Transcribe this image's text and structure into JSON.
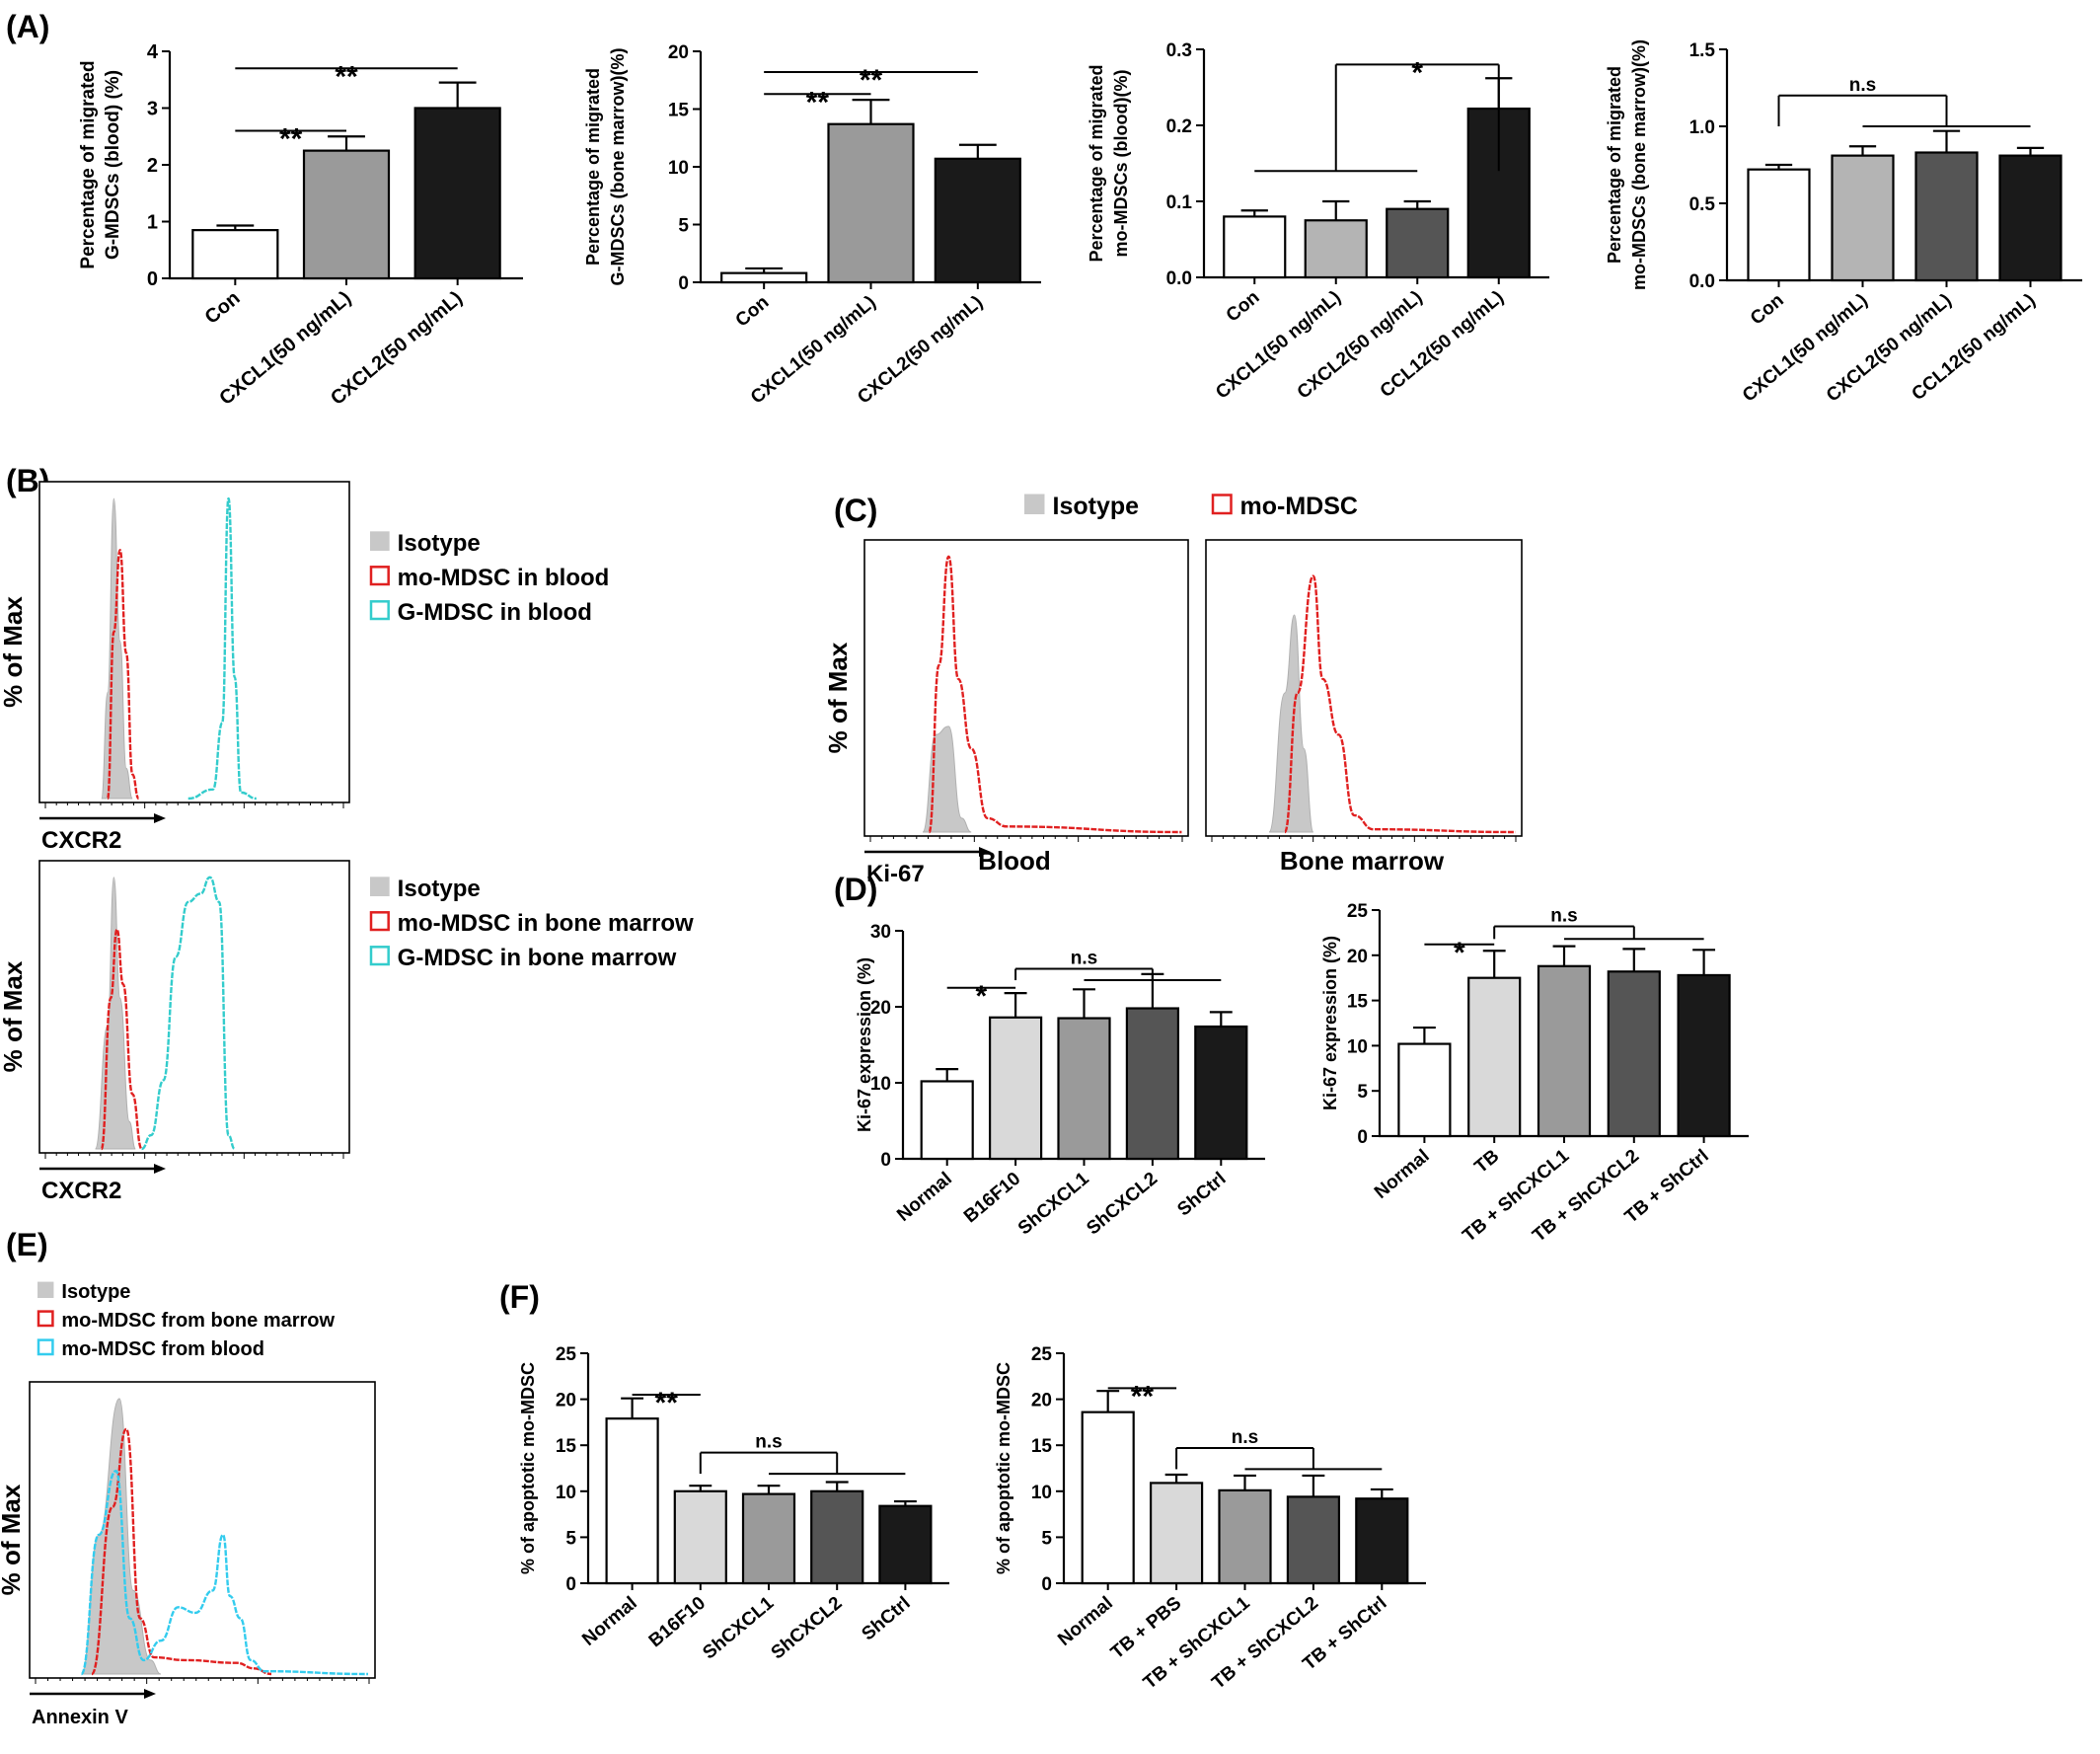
{
  "panels": {
    "A": "(A)",
    "B": "(B)",
    "C": "(C)",
    "D": "(D)",
    "E": "(E)",
    "F": "(F)"
  },
  "chart_data": [
    {
      "id": "A1",
      "type": "bar",
      "ylabel": "Percentage of migrated G-MDSCs (blood) (%)",
      "ylabel_lines": [
        "Percentage of migrated",
        "G-MDSCs (blood) (%)"
      ],
      "categories": [
        "Con",
        "CXCL1(50 ng/mL)",
        "CXCL2(50 ng/mL)"
      ],
      "values": [
        0.85,
        2.25,
        3.0
      ],
      "errors": [
        0.08,
        0.25,
        0.45
      ],
      "bar_colors": [
        "#ffffff",
        "#9a9a9a",
        "#1a1a1a"
      ],
      "ylim": [
        0,
        4
      ],
      "yticks": [
        "0",
        "1",
        "2",
        "3",
        "4"
      ],
      "brackets": [
        {
          "type": "line",
          "x1": 0,
          "x2": 1,
          "y": 2.6,
          "label": "**"
        },
        {
          "type": "line",
          "x1": 0,
          "x2": 2,
          "y": 3.7,
          "label": "**"
        }
      ]
    },
    {
      "id": "A2",
      "type": "bar",
      "ylabel": "Percentage of migrated G-MDSCs (bone marrow)(%)",
      "ylabel_lines": [
        "Percentage of migrated",
        "G-MDSCs (bone marrow)(%)"
      ],
      "categories": [
        "Con",
        "CXCL1(50 ng/mL)",
        "CXCL2(50 ng/mL)"
      ],
      "values": [
        0.8,
        13.7,
        10.7
      ],
      "errors": [
        0.4,
        2.1,
        1.2
      ],
      "bar_colors": [
        "#ffffff",
        "#9a9a9a",
        "#1a1a1a"
      ],
      "ylim": [
        0,
        20
      ],
      "yticks": [
        "0",
        "5",
        "10",
        "15",
        "20"
      ],
      "brackets": [
        {
          "type": "line",
          "x1": 0,
          "x2": 1,
          "y": 16.3,
          "label": "**"
        },
        {
          "type": "line",
          "x1": 0,
          "x2": 2,
          "y": 18.2,
          "label": "**"
        }
      ]
    },
    {
      "id": "A3",
      "type": "bar",
      "ylabel": "Percentage of migrated mo-MDSCs (blood)(%)",
      "ylabel_lines": [
        "Percentage of migrated",
        "mo-MDSCs (blood)(%)"
      ],
      "categories": [
        "Con",
        "CXCL1(50 ng/mL)",
        "CXCL2(50 ng/mL)",
        "CCL12(50 ng/mL)"
      ],
      "values": [
        0.08,
        0.075,
        0.09,
        0.222
      ],
      "errors": [
        0.008,
        0.025,
        0.01,
        0.04
      ],
      "bar_colors": [
        "#ffffff",
        "#b4b4b4",
        "#555555",
        "#1a1a1a"
      ],
      "ylim": [
        0,
        0.3
      ],
      "yticks": [
        "0.0",
        "0.1",
        "0.2",
        "0.3"
      ],
      "brackets": [
        {
          "type": "line",
          "x1": 0,
          "x2": 2,
          "y": 0.14,
          "label": ""
        },
        {
          "type": "stem",
          "x1": 1,
          "x2": 3,
          "y": 0.28,
          "stem_from": 0.14,
          "label": "*"
        }
      ]
    },
    {
      "id": "A4",
      "type": "bar",
      "ylabel": "Percentage of migrated mo-MDSCs (bone marrow)(%)",
      "ylabel_lines": [
        "Percentage of migrated",
        "mo-MDSCs (bone marrow)(%)"
      ],
      "categories": [
        "Con",
        "CXCL1(50 ng/mL)",
        "CXCL2(50 ng/mL)",
        "CCL12(50 ng/mL)"
      ],
      "values": [
        0.72,
        0.81,
        0.83,
        0.81
      ],
      "errors": [
        0.03,
        0.06,
        0.14,
        0.05
      ],
      "bar_colors": [
        "#ffffff",
        "#b4b4b4",
        "#555555",
        "#1a1a1a"
      ],
      "ylim": [
        0,
        1.5
      ],
      "yticks": [
        "0.0",
        "0.5",
        "1.0",
        "1.5"
      ],
      "brackets": [
        {
          "type": "line",
          "x1": 1,
          "x2": 3,
          "y": 1.0,
          "label": ""
        },
        {
          "type": "stem",
          "x1": 0,
          "x2": 2,
          "y": 1.2,
          "stem_from": 1.0,
          "label": "n.s"
        }
      ]
    },
    {
      "id": "D1",
      "type": "bar",
      "ylabel": "Ki-67 expression (%)",
      "ylabel_lines": [
        "Ki-67 expression (%)"
      ],
      "categories": [
        "Normal",
        "B16F10",
        "ShCXCL1",
        "ShCXCL2",
        "ShCtrl"
      ],
      "values": [
        10.2,
        18.6,
        18.5,
        19.8,
        17.4
      ],
      "errors": [
        1.6,
        3.2,
        3.8,
        4.5,
        1.9
      ],
      "bar_colors": [
        "#ffffff",
        "#d9d9d9",
        "#9a9a9a",
        "#555555",
        "#1a1a1a"
      ],
      "ylim": [
        0,
        30
      ],
      "yticks": [
        "0",
        "10",
        "20",
        "30"
      ],
      "brackets": [
        {
          "type": "line",
          "x1": 0,
          "x2": 1,
          "y": 22.5,
          "label": "*"
        },
        {
          "type": "line",
          "x1": 2,
          "x2": 4,
          "y": 23.5,
          "label": ""
        },
        {
          "type": "stem",
          "x1": 1,
          "x2": 3,
          "y": 25.0,
          "stem_from": 23.5,
          "label": "n.s"
        }
      ]
    },
    {
      "id": "D2",
      "type": "bar",
      "ylabel": "Ki-67 expression (%)",
      "ylabel_lines": [
        "Ki-67 expression (%)"
      ],
      "categories": [
        "Normal",
        "TB",
        "TB + ShCXCL1",
        "TB + ShCXCL2",
        "TB + ShCtrl"
      ],
      "values": [
        10.2,
        17.5,
        18.8,
        18.2,
        17.8
      ],
      "errors": [
        1.8,
        3.0,
        2.2,
        2.5,
        2.8
      ],
      "bar_colors": [
        "#ffffff",
        "#d9d9d9",
        "#9a9a9a",
        "#555555",
        "#1a1a1a"
      ],
      "ylim": [
        0,
        25
      ],
      "yticks": [
        "0",
        "5",
        "10",
        "15",
        "20",
        "25"
      ],
      "brackets": [
        {
          "type": "line",
          "x1": 0,
          "x2": 1,
          "y": 21.2,
          "label": "*"
        },
        {
          "type": "line",
          "x1": 2,
          "x2": 4,
          "y": 21.8,
          "label": ""
        },
        {
          "type": "stem",
          "x1": 1,
          "x2": 3,
          "y": 23.2,
          "stem_from": 21.8,
          "label": "n.s"
        }
      ]
    },
    {
      "id": "F1",
      "type": "bar",
      "ylabel": "% of apoptotic mo-MDSC",
      "ylabel_lines": [
        "% of apoptotic mo-MDSC"
      ],
      "categories": [
        "Normal",
        "B16F10",
        "ShCXCL1",
        "ShCXCL2",
        "ShCtrl"
      ],
      "values": [
        17.9,
        10.0,
        9.7,
        10.0,
        8.4
      ],
      "errors": [
        2.2,
        0.6,
        0.9,
        1.0,
        0.5
      ],
      "bar_colors": [
        "#ffffff",
        "#d9d9d9",
        "#9a9a9a",
        "#555555",
        "#1a1a1a"
      ],
      "ylim": [
        0,
        25
      ],
      "yticks": [
        "0",
        "5",
        "10",
        "15",
        "20",
        "25"
      ],
      "brackets": [
        {
          "type": "line",
          "x1": 0,
          "x2": 1,
          "y": 20.5,
          "label": "**"
        },
        {
          "type": "line",
          "x1": 2,
          "x2": 4,
          "y": 11.9,
          "label": ""
        },
        {
          "type": "stem",
          "x1": 1,
          "x2": 3,
          "y": 14.2,
          "stem_from": 11.9,
          "label": "n.s"
        }
      ]
    },
    {
      "id": "F2",
      "type": "bar",
      "ylabel": "% of apoptotic mo-MDSC",
      "ylabel_lines": [
        "% of apoptotic mo-MDSC"
      ],
      "categories": [
        "Normal",
        "TB + PBS",
        "TB + ShCXCL1",
        "TB + ShCXCL2",
        "TB + ShCtrl"
      ],
      "values": [
        18.6,
        10.9,
        10.1,
        9.4,
        9.2
      ],
      "errors": [
        2.3,
        0.9,
        1.6,
        2.3,
        1.0
      ],
      "bar_colors": [
        "#ffffff",
        "#d9d9d9",
        "#9a9a9a",
        "#555555",
        "#1a1a1a"
      ],
      "ylim": [
        0,
        25
      ],
      "yticks": [
        "0",
        "5",
        "10",
        "15",
        "20",
        "25"
      ],
      "brackets": [
        {
          "type": "line",
          "x1": 0,
          "x2": 1,
          "y": 21.2,
          "label": "**"
        },
        {
          "type": "line",
          "x1": 2,
          "x2": 4,
          "y": 12.4,
          "label": ""
        },
        {
          "type": "stem",
          "x1": 1,
          "x2": 3,
          "y": 14.7,
          "stem_from": 12.4,
          "label": "n.s"
        }
      ]
    }
  ],
  "histograms": [
    {
      "id": "B1",
      "ylabel": "% of Max",
      "xlabel": "CXCR2",
      "legend": [
        {
          "label": "Isotype",
          "type": "filled",
          "color": "#c8c8c8"
        },
        {
          "label": "mo-MDSC in blood",
          "type": "outline",
          "color": "#e02020"
        },
        {
          "label": "G-MDSC in blood",
          "type": "outline",
          "color": "#33cccc"
        }
      ],
      "curves": [
        {
          "kind": "filled",
          "color": "#c8c8c8",
          "shape": [
            [
              0.2,
              0
            ],
            [
              0.22,
              0.35
            ],
            [
              0.24,
              0.99
            ],
            [
              0.26,
              0.52
            ],
            [
              0.28,
              0.1
            ],
            [
              0.3,
              0
            ]
          ]
        },
        {
          "kind": "line",
          "color": "#e02020",
          "shape": [
            [
              0.22,
              0
            ],
            [
              0.24,
              0.55
            ],
            [
              0.26,
              0.82
            ],
            [
              0.28,
              0.48
            ],
            [
              0.3,
              0.08
            ],
            [
              0.32,
              0
            ]
          ]
        },
        {
          "kind": "line",
          "color": "#33cccc",
          "shape": [
            [
              0.48,
              0
            ],
            [
              0.56,
              0.03
            ],
            [
              0.59,
              0.25
            ],
            [
              0.61,
              0.99
            ],
            [
              0.63,
              0.4
            ],
            [
              0.65,
              0.02
            ],
            [
              0.7,
              0
            ]
          ]
        }
      ]
    },
    {
      "id": "B2",
      "ylabel": "% of Max",
      "xlabel": "CXCR2",
      "legend": [
        {
          "label": "Isotype",
          "type": "filled",
          "color": "#c8c8c8"
        },
        {
          "label": "mo-MDSC in bone marrow",
          "type": "outline",
          "color": "#e02020"
        },
        {
          "label": "G-MDSC in bone marrow",
          "type": "outline",
          "color": "#33cccc"
        }
      ],
      "curves": [
        {
          "kind": "filled",
          "color": "#c8c8c8",
          "shape": [
            [
              0.18,
              0
            ],
            [
              0.22,
              0.45
            ],
            [
              0.24,
              0.99
            ],
            [
              0.26,
              0.55
            ],
            [
              0.29,
              0.1
            ],
            [
              0.31,
              0
            ]
          ]
        },
        {
          "kind": "line",
          "color": "#e02020",
          "shape": [
            [
              0.2,
              0
            ],
            [
              0.23,
              0.55
            ],
            [
              0.25,
              0.8
            ],
            [
              0.27,
              0.6
            ],
            [
              0.3,
              0.2
            ],
            [
              0.33,
              0
            ]
          ]
        },
        {
          "kind": "line",
          "color": "#33cccc",
          "shape": [
            [
              0.33,
              0
            ],
            [
              0.36,
              0.05
            ],
            [
              0.4,
              0.25
            ],
            [
              0.44,
              0.7
            ],
            [
              0.48,
              0.9
            ],
            [
              0.52,
              0.93
            ],
            [
              0.55,
              0.99
            ],
            [
              0.58,
              0.9
            ],
            [
              0.61,
              0.05
            ],
            [
              0.63,
              0
            ]
          ]
        }
      ]
    },
    {
      "id": "C1",
      "ylabel": "% of Max",
      "xlabel": "Ki-67",
      "caption": "Blood",
      "legend": [
        {
          "label": "Isotype",
          "type": "filled",
          "color": "#c8c8c8"
        },
        {
          "label": "mo-MDSC",
          "type": "outline",
          "color": "#e02020"
        }
      ],
      "curves": [
        {
          "kind": "filled",
          "color": "#c8c8c8",
          "shape": [
            [
              0.18,
              0
            ],
            [
              0.22,
              0.35
            ],
            [
              0.26,
              0.38
            ],
            [
              0.3,
              0.05
            ],
            [
              0.33,
              0
            ]
          ]
        },
        {
          "kind": "line",
          "color": "#e02020",
          "shape": [
            [
              0.2,
              0
            ],
            [
              0.23,
              0.6
            ],
            [
              0.26,
              0.99
            ],
            [
              0.29,
              0.55
            ],
            [
              0.33,
              0.3
            ],
            [
              0.38,
              0.05
            ],
            [
              0.44,
              0.02
            ],
            [
              0.98,
              0
            ]
          ]
        }
      ]
    },
    {
      "id": "C2",
      "caption": "Bone marrow",
      "curves": [
        {
          "kind": "filled",
          "color": "#c8c8c8",
          "shape": [
            [
              0.2,
              0
            ],
            [
              0.25,
              0.5
            ],
            [
              0.28,
              0.78
            ],
            [
              0.31,
              0.3
            ],
            [
              0.34,
              0
            ]
          ]
        },
        {
          "kind": "line",
          "color": "#e02020",
          "shape": [
            [
              0.25,
              0
            ],
            [
              0.29,
              0.5
            ],
            [
              0.34,
              0.92
            ],
            [
              0.37,
              0.55
            ],
            [
              0.42,
              0.35
            ],
            [
              0.47,
              0.06
            ],
            [
              0.53,
              0.01
            ],
            [
              0.98,
              0
            ]
          ]
        }
      ]
    },
    {
      "id": "E1",
      "ylabel": "% of Max",
      "xlabel": "Annexin V",
      "legend": [
        {
          "label": "Isotype",
          "type": "filled",
          "color": "#c8c8c8"
        },
        {
          "label": "mo-MDSC from bone marrow",
          "type": "outline",
          "color": "#e02020"
        },
        {
          "label": "mo-MDSC from blood",
          "type": "outline",
          "color": "#33ccee"
        }
      ],
      "curves": [
        {
          "kind": "filled",
          "color": "#c8c8c8",
          "shape": [
            [
              0.15,
              0
            ],
            [
              0.2,
              0.5
            ],
            [
              0.26,
              0.99
            ],
            [
              0.3,
              0.3
            ],
            [
              0.35,
              0.05
            ],
            [
              0.38,
              0
            ]
          ]
        },
        {
          "kind": "line",
          "color": "#e02020",
          "shape": [
            [
              0.18,
              0
            ],
            [
              0.24,
              0.6
            ],
            [
              0.28,
              0.88
            ],
            [
              0.32,
              0.2
            ],
            [
              0.36,
              0.06
            ],
            [
              0.45,
              0.05
            ],
            [
              0.6,
              0.04
            ],
            [
              0.65,
              0.02
            ],
            [
              0.7,
              0
            ]
          ]
        },
        {
          "kind": "line",
          "color": "#33ccee",
          "shape": [
            [
              0.15,
              0
            ],
            [
              0.2,
              0.5
            ],
            [
              0.25,
              0.73
            ],
            [
              0.29,
              0.2
            ],
            [
              0.33,
              0.05
            ],
            [
              0.38,
              0.12
            ],
            [
              0.43,
              0.24
            ],
            [
              0.48,
              0.22
            ],
            [
              0.53,
              0.3
            ],
            [
              0.56,
              0.5
            ],
            [
              0.58,
              0.28
            ],
            [
              0.61,
              0.2
            ],
            [
              0.64,
              0.05
            ],
            [
              0.68,
              0.01
            ],
            [
              0.98,
              0
            ]
          ]
        }
      ]
    }
  ]
}
